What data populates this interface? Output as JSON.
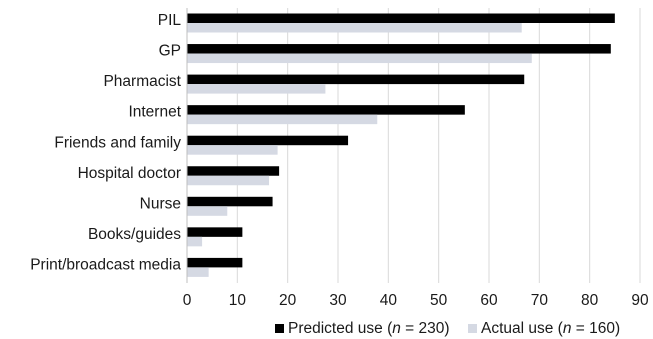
{
  "chart_data": {
    "type": "bar",
    "orientation": "horizontal",
    "categories": [
      "PIL",
      "GP",
      "Pharmacist",
      "Internet",
      "Friends and family",
      "Hospital doctor",
      "Nurse",
      "Books/guides",
      "Print/broadcast media"
    ],
    "series": [
      {
        "name": "Predicted use (n = 230)",
        "name_parts": [
          "Predicted use (",
          "n",
          " = 230)"
        ],
        "color": "#000000",
        "values": [
          85,
          84.2,
          67,
          55.2,
          32,
          18.3,
          17,
          11,
          11
        ]
      },
      {
        "name": "Actual use (n = 160)",
        "name_parts": [
          "Actual use (",
          "n",
          " = 160)"
        ],
        "color": "#d5d9e3",
        "values": [
          66.5,
          68.5,
          27.5,
          37.8,
          18,
          16.3,
          8,
          3,
          4.3
        ]
      }
    ],
    "xlim": [
      0,
      90
    ],
    "xticks": [
      0,
      10,
      20,
      30,
      40,
      50,
      60,
      70,
      80,
      90
    ],
    "title": "",
    "xlabel": "",
    "ylabel": "",
    "grid": "vertical",
    "legend": "bottom-right"
  }
}
